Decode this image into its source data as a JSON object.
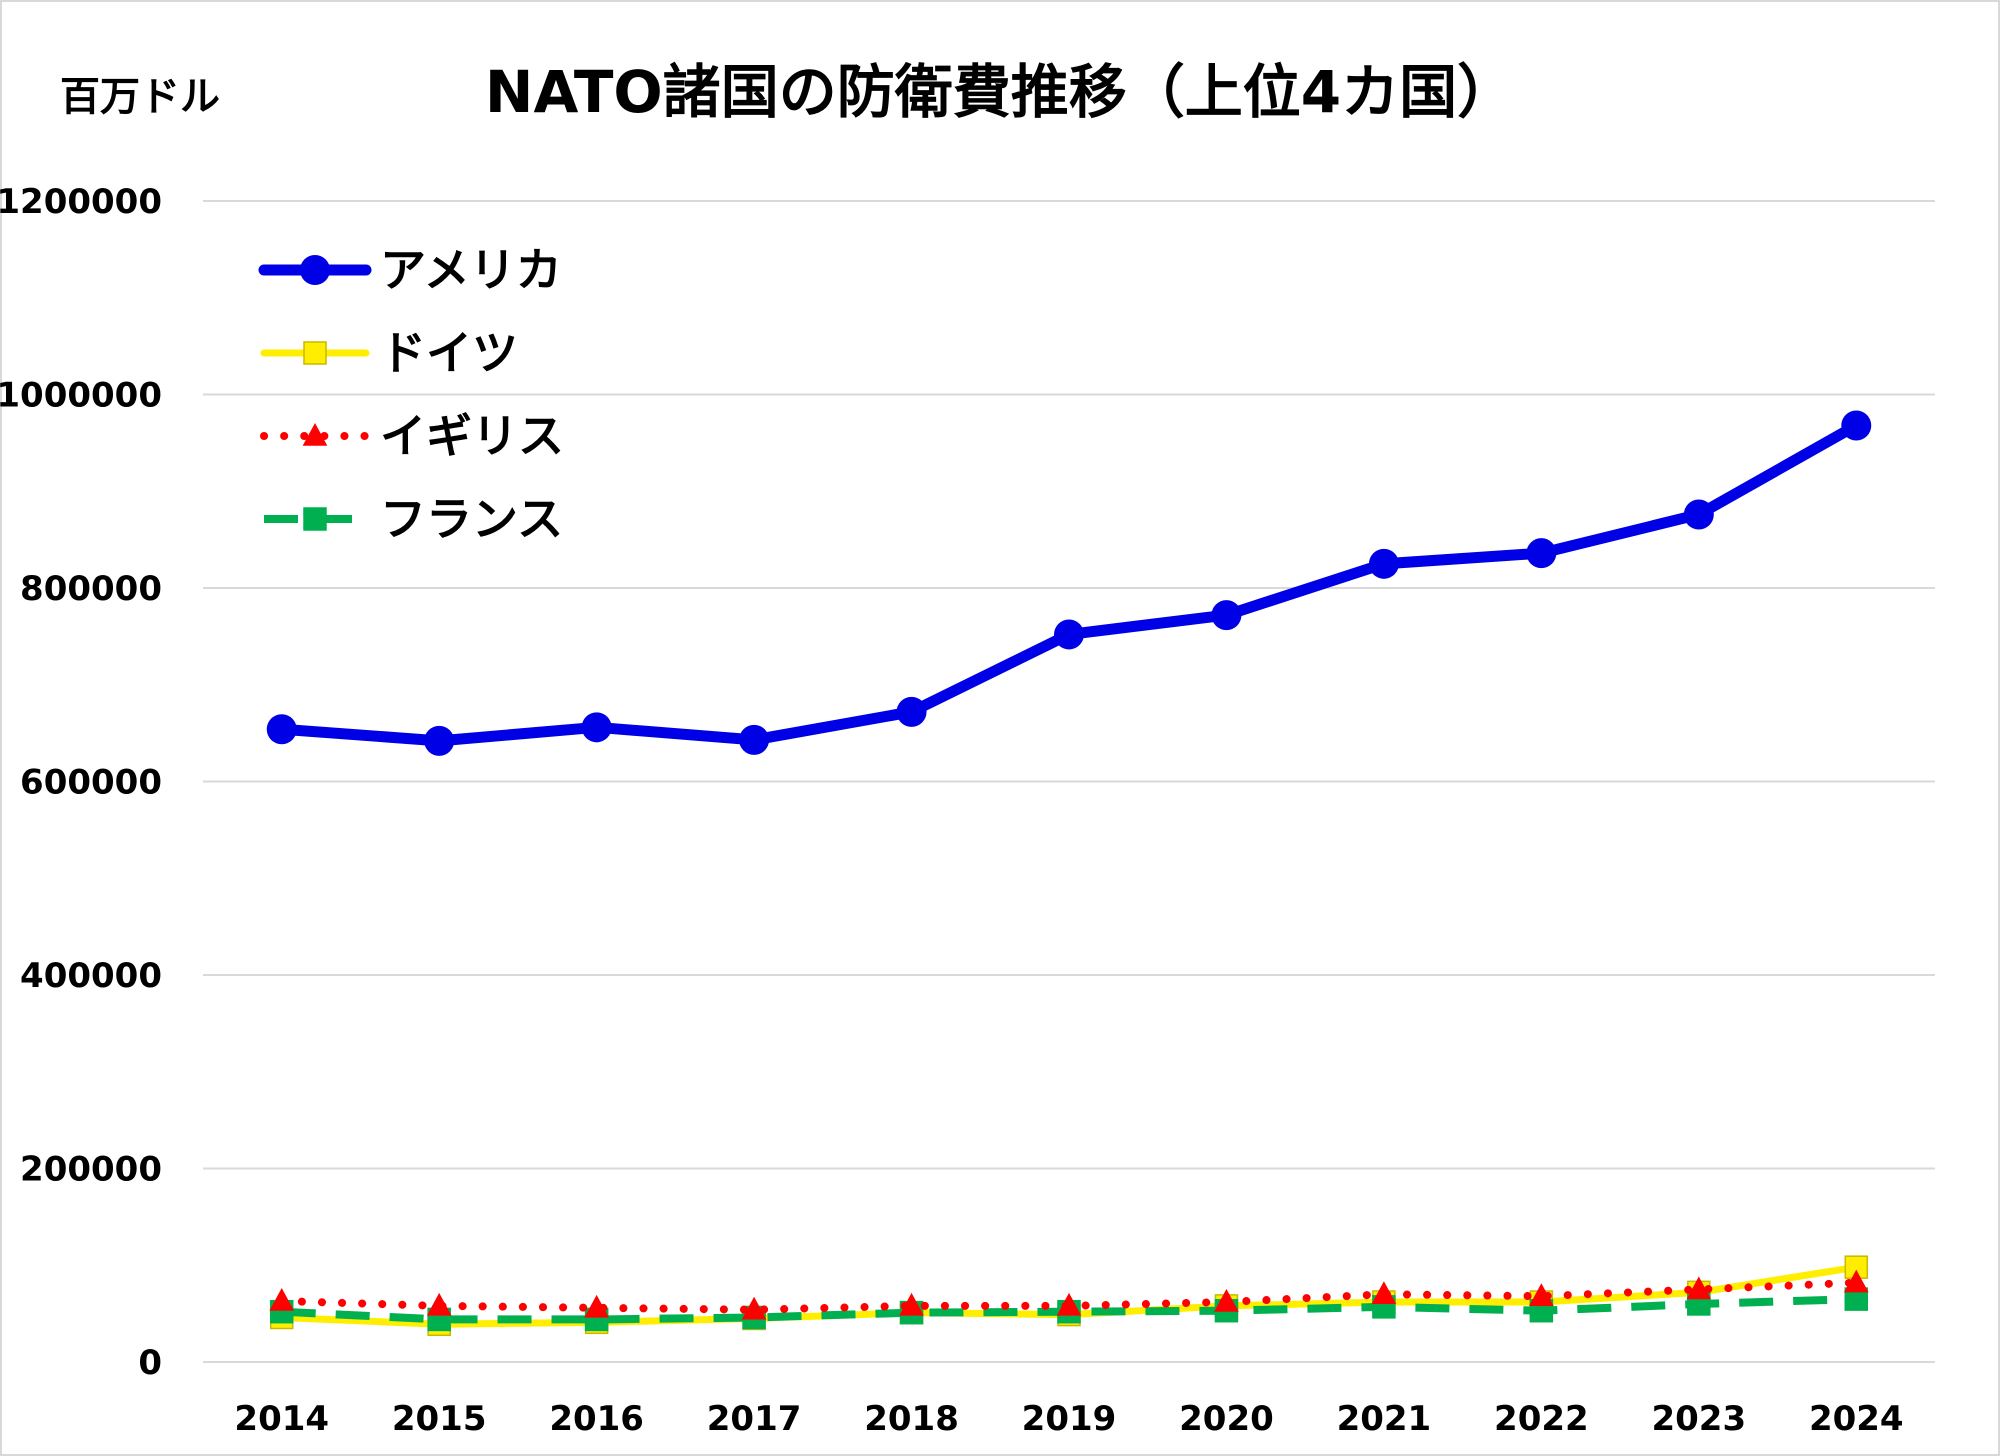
{
  "chart_data": {
    "type": "line",
    "title": "NATO諸国の防衛費推移（上位4カ国）",
    "ylabel": "百万ドル",
    "xlabel": "",
    "x": [
      "2014",
      "2015",
      "2016",
      "2017",
      "2018",
      "2019",
      "2020",
      "2021",
      "2022",
      "2023",
      "2024"
    ],
    "ylim": [
      0,
      1200000
    ],
    "yticks": [
      "0",
      "200000",
      "400000",
      "600000",
      "800000",
      "1000000",
      "1200000"
    ],
    "grid": true,
    "legend_position": "top-left",
    "series": [
      {
        "name": "アメリカ",
        "color": "#0000e6",
        "line_style": "solid",
        "marker": "circle",
        "values": [
          654000,
          642000,
          656000,
          643000,
          672000,
          752000,
          772000,
          825000,
          836000,
          876000,
          968000
        ]
      },
      {
        "name": "ドイツ",
        "color": "#ffee00",
        "line_style": "solid",
        "marker": "square",
        "values": [
          46000,
          39000,
          41000,
          45000,
          51000,
          49000,
          58000,
          62000,
          62000,
          72000,
          98000
        ]
      },
      {
        "name": "イギリス",
        "color": "#ff0000",
        "line_style": "dotted",
        "marker": "triangle",
        "values": [
          63000,
          58000,
          56000,
          54000,
          58000,
          58000,
          62000,
          70000,
          68000,
          75000,
          82000
        ]
      },
      {
        "name": "フランス",
        "color": "#00b050",
        "line_style": "dashed",
        "marker": "square",
        "values": [
          52000,
          44000,
          44000,
          46000,
          51000,
          52000,
          53000,
          57000,
          53000,
          60000,
          65000
        ]
      }
    ]
  }
}
